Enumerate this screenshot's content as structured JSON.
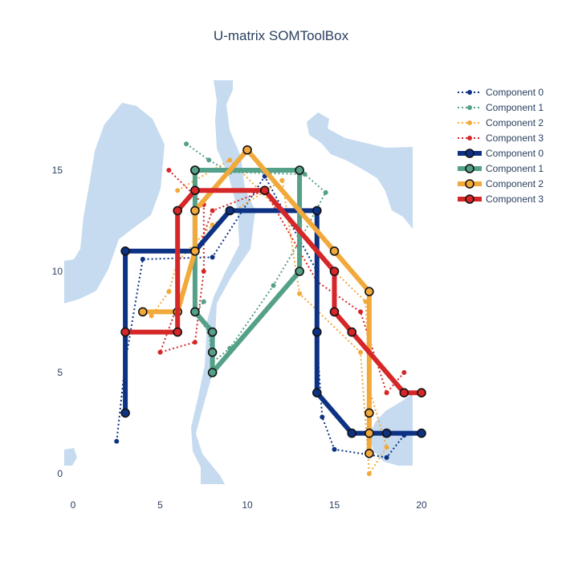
{
  "chart_data": {
    "type": "line",
    "title": "U-matrix SOMToolBox",
    "xlabel": "",
    "ylabel": "",
    "xlim": [
      0,
      20
    ],
    "ylim": [
      0,
      16.5
    ],
    "x_ticks": [
      0,
      5,
      10,
      15,
      20
    ],
    "y_ticks": [
      0,
      5,
      10,
      15
    ],
    "grid": false,
    "legend_position": "top-right",
    "background_color": "#c6dbef",
    "series": [
      {
        "name": "Component 0",
        "style": "dotted",
        "color": "#0d3283",
        "points": [
          [
            2.5,
            1.6
          ],
          [
            3.0,
            5.5
          ],
          [
            4.0,
            10.6
          ],
          [
            8.0,
            10.7
          ],
          [
            11.0,
            14.7
          ],
          [
            14.0,
            10.0
          ],
          [
            14.0,
            6.5
          ],
          [
            14.3,
            2.8
          ],
          [
            15.0,
            1.2
          ],
          [
            18.0,
            0.8
          ],
          [
            19.0,
            1.9
          ]
        ]
      },
      {
        "name": "Component 1",
        "style": "dotted",
        "color": "#54a088",
        "points": [
          [
            6.5,
            16.3
          ],
          [
            7.8,
            15.5
          ],
          [
            9.0,
            14.9
          ],
          [
            13.3,
            14.8
          ],
          [
            14.5,
            13.9
          ],
          [
            13.0,
            11.5
          ],
          [
            11.5,
            9.3
          ],
          [
            9.0,
            6.2
          ],
          [
            8.0,
            5.5
          ],
          [
            7.8,
            7.0
          ],
          [
            7.0,
            7.9
          ],
          [
            7.5,
            8.5
          ]
        ]
      },
      {
        "name": "Component 2",
        "style": "dotted",
        "color": "#f2a93b",
        "points": [
          [
            6.0,
            14.0
          ],
          [
            9.0,
            15.5
          ],
          [
            13.0,
            12.0
          ],
          [
            15.0,
            10.0
          ],
          [
            16.8,
            8.5
          ],
          [
            17.0,
            4.2
          ],
          [
            18.0,
            1.3
          ],
          [
            17.0,
            0.0
          ],
          [
            16.5,
            6.0
          ],
          [
            13.0,
            8.9
          ],
          [
            12.0,
            14.5
          ],
          [
            8.0,
            12.3
          ],
          [
            6.0,
            10.5
          ],
          [
            5.5,
            9.0
          ],
          [
            4.5,
            7.8
          ]
        ]
      },
      {
        "name": "Component 3",
        "style": "dotted",
        "color": "#d62728",
        "points": [
          [
            5.5,
            15.0
          ],
          [
            7.5,
            13.3
          ],
          [
            7.5,
            10.0
          ],
          [
            7.0,
            6.5
          ],
          [
            5.0,
            6.0
          ],
          [
            8.0,
            13.0
          ],
          [
            11.0,
            14.0
          ],
          [
            14.0,
            9.5
          ],
          [
            16.5,
            8.0
          ],
          [
            18.0,
            4.0
          ],
          [
            19.0,
            5.0
          ]
        ]
      },
      {
        "name": "Component 0",
        "style": "solid",
        "color": "#0d3283",
        "points": [
          [
            3,
            3
          ],
          [
            3,
            11
          ],
          [
            7,
            11
          ],
          [
            9,
            13
          ],
          [
            14,
            13
          ],
          [
            14,
            7
          ],
          [
            14,
            4
          ],
          [
            16,
            2
          ],
          [
            18,
            2
          ],
          [
            20,
            2
          ]
        ]
      },
      {
        "name": "Component 1",
        "style": "solid",
        "color": "#54a088",
        "points": [
          [
            7,
            15
          ],
          [
            13,
            15
          ],
          [
            13,
            10
          ],
          [
            8,
            5
          ],
          [
            8,
            6
          ],
          [
            8,
            7
          ],
          [
            7,
            8
          ],
          [
            7,
            15
          ]
        ]
      },
      {
        "name": "Component 2",
        "style": "solid",
        "color": "#f2a93b",
        "points": [
          [
            4,
            8
          ],
          [
            6,
            8
          ],
          [
            7,
            11
          ],
          [
            7,
            13
          ],
          [
            10,
            16
          ],
          [
            15,
            11
          ],
          [
            17,
            9
          ],
          [
            17,
            3
          ],
          [
            17,
            2
          ],
          [
            17,
            1
          ]
        ]
      },
      {
        "name": "Component 3",
        "style": "solid",
        "color": "#d62728",
        "points": [
          [
            3,
            7
          ],
          [
            6,
            7
          ],
          [
            6,
            13
          ],
          [
            7,
            14
          ],
          [
            11,
            14
          ],
          [
            15,
            10
          ],
          [
            15,
            8
          ],
          [
            16,
            7
          ],
          [
            19,
            4
          ],
          [
            20,
            4
          ]
        ]
      }
    ]
  }
}
